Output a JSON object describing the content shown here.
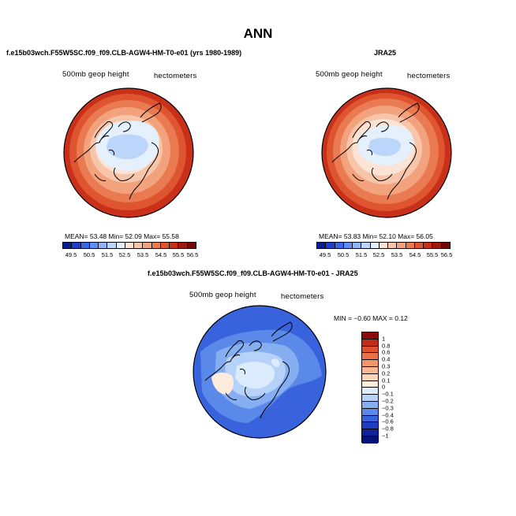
{
  "title": "ANN",
  "panels": {
    "model": {
      "title": "f.e15b03wch.F55W5SC.f09_f09.CLB-AGW4-HM-T0-e01 (yrs 1980-1989)",
      "variable": "500mb geop height",
      "units": "hectometers",
      "stats_text": "MEAN=   53.48   Min=    52.09   Max=    55.58"
    },
    "obs": {
      "title": "JRA25",
      "variable": "500mb geop height",
      "units": "hectometers",
      "stats_text": "MEAN=   53.83   Min=    52.10   Max=    56.05"
    },
    "diff": {
      "title": "f.e15b03wch.F55W5SC.f09_f09.CLB-AGW4-HM-T0-e01 - JRA25",
      "variable": "500mb geop height",
      "units": "hectometers",
      "stats_text": "MIN =   −0.60  MAX =    0.12"
    }
  },
  "chart_data": [
    {
      "type": "heatmap",
      "projection": "polar-stereographic-north",
      "title": "f.e15b03wch.F55W5SC.f09_f09.CLB-AGW4-HM-T0-e01 (yrs 1980-1989)",
      "variable": "500mb geop height",
      "units": "hectometers",
      "mean": 53.48,
      "min": 52.09,
      "max": 55.58,
      "colorbar_levels": [
        "49.5",
        "50.5",
        "51.5",
        "52.5",
        "53.5",
        "54.5",
        "55.5",
        "56.5"
      ],
      "colorbar_colors": [
        "#0b1f8c",
        "#1f3fc9",
        "#3a67e6",
        "#5f8ff2",
        "#8eb3f7",
        "#bcd6fb",
        "#e5f0fd",
        "#fbe4d6",
        "#f7c5a9",
        "#f2a27c",
        "#ea7a52",
        "#df5530",
        "#c9301a",
        "#a0170f",
        "#730806"
      ]
    },
    {
      "type": "heatmap",
      "projection": "polar-stereographic-north",
      "title": "JRA25",
      "variable": "500mb geop height",
      "units": "hectometers",
      "mean": 53.83,
      "min": 52.1,
      "max": 56.05,
      "colorbar_levels": [
        "49.5",
        "50.5",
        "51.5",
        "52.5",
        "53.5",
        "54.5",
        "55.5",
        "56.5"
      ],
      "colorbar_colors": [
        "#0b1f8c",
        "#1f3fc9",
        "#3a67e6",
        "#5f8ff2",
        "#8eb3f7",
        "#bcd6fb",
        "#e5f0fd",
        "#fbe4d6",
        "#f7c5a9",
        "#f2a27c",
        "#ea7a52",
        "#df5530",
        "#c9301a",
        "#a0170f",
        "#730806"
      ]
    },
    {
      "type": "heatmap",
      "projection": "polar-stereographic-north",
      "title": "f.e15b03wch.F55W5SC.f09_f09.CLB-AGW4-HM-T0-e01 - JRA25",
      "variable": "500mb geop height",
      "units": "hectometers",
      "min": -0.6,
      "max": 0.12,
      "colorbar_levels": [
        "1",
        "0.8",
        "0.6",
        "0.4",
        "0.3",
        "0.2",
        "0.1",
        "0",
        "−0.1",
        "−0.2",
        "−0.3",
        "−0.4",
        "−0.6",
        "−0.8",
        "−1"
      ],
      "colorbar_colors": [
        "#8b0a0a",
        "#c42a17",
        "#e0502c",
        "#ec7048",
        "#f39568",
        "#f8b78f",
        "#fbd4b8",
        "#fdebdd",
        "#dcecfc",
        "#b7d2f8",
        "#86aff2",
        "#5a89ea",
        "#3863dd",
        "#1f3dc2",
        "#0e239a",
        "#07117a"
      ]
    }
  ]
}
